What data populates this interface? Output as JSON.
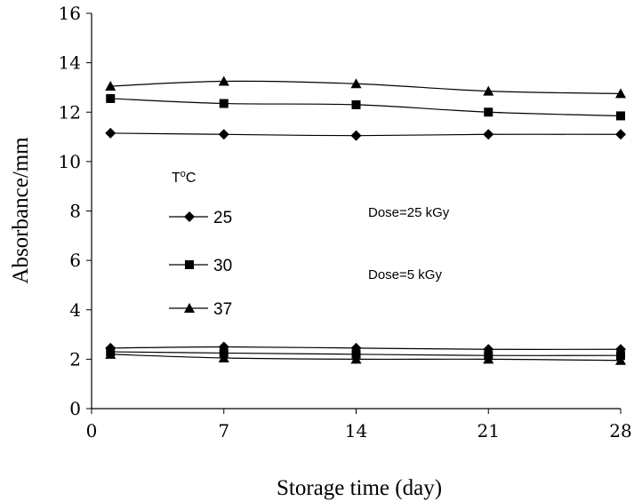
{
  "chart_data": {
    "type": "line",
    "xlabel": "Storage time (day)",
    "ylabel": "Absorbance/mm",
    "xlim": [
      0,
      28
    ],
    "ylim": [
      0,
      16
    ],
    "xticks": [
      "0",
      "7",
      "14",
      "21",
      "28"
    ],
    "yticks": [
      "0",
      "2",
      "4",
      "6",
      "8",
      "10",
      "12",
      "14",
      "16"
    ],
    "grid": false,
    "legend": {
      "title": "T°C",
      "title_base": "T",
      "title_sup": "o",
      "title_tail": "C",
      "entries": [
        "25",
        "30",
        "37"
      ],
      "placement": "middle-left"
    },
    "annotations": [
      "Dose=25 kGy",
      "Dose=5 kGy"
    ],
    "x": [
      1,
      7,
      14,
      21,
      28
    ],
    "series": [
      {
        "name": "25",
        "group": "Dose=25 kGy",
        "marker": "diamond",
        "values": [
          11.15,
          11.1,
          11.05,
          11.1,
          11.1
        ]
      },
      {
        "name": "30",
        "group": "Dose=25 kGy",
        "marker": "square",
        "values": [
          12.55,
          12.35,
          12.3,
          12.0,
          11.85
        ]
      },
      {
        "name": "37",
        "group": "Dose=25 kGy",
        "marker": "triangle",
        "values": [
          13.05,
          13.25,
          13.15,
          12.85,
          12.75
        ]
      },
      {
        "name": "25",
        "group": "Dose=5 kGy",
        "marker": "diamond",
        "values": [
          2.45,
          2.5,
          2.45,
          2.4,
          2.4
        ]
      },
      {
        "name": "30",
        "group": "Dose=5 kGy",
        "marker": "square",
        "values": [
          2.3,
          2.25,
          2.2,
          2.15,
          2.15
        ]
      },
      {
        "name": "37",
        "group": "Dose=5 kGy",
        "marker": "triangle",
        "values": [
          2.2,
          2.05,
          2.0,
          2.0,
          1.95
        ]
      }
    ]
  }
}
